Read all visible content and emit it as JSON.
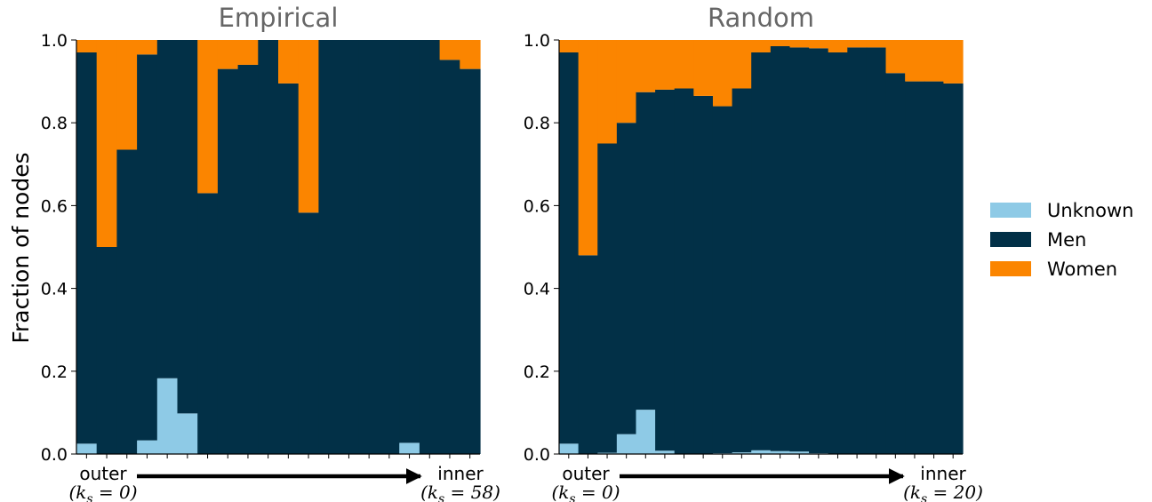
{
  "colors": {
    "unknown": "#8ecae6",
    "men": "#023047",
    "women": "#fb8500"
  },
  "ylabel": "Fraction of nodes",
  "legend": {
    "items": [
      {
        "key": "unknown",
        "label": "Unknown"
      },
      {
        "key": "men",
        "label": "Men"
      },
      {
        "key": "women",
        "label": "Women"
      }
    ]
  },
  "chart_data": [
    {
      "type": "bar",
      "stacked": true,
      "title": "Empirical",
      "ylim": [
        0,
        1
      ],
      "yticks": [
        "0.0",
        "0.2",
        "0.4",
        "0.6",
        "0.8",
        "1.0"
      ],
      "x_start_label": "outer",
      "x_start_k": "(k_s = 0)",
      "x_end_label": "inner",
      "x_end_k": "(k_s = 58)",
      "series": [
        {
          "name": "Unknown",
          "values": [
            0.025,
            0,
            0,
            0.033,
            0.183,
            0.098,
            0,
            0,
            0,
            0,
            0,
            0,
            0,
            0,
            0,
            0,
            0.027,
            0,
            0,
            0
          ]
        },
        {
          "name": "Men",
          "values": [
            0.945,
            0.5,
            0.735,
            0.932,
            0.817,
            0.902,
            0.63,
            0.93,
            0.94,
            1.0,
            0.895,
            0.583,
            1.0,
            1.0,
            1.0,
            1.0,
            0.973,
            1.0,
            0.952,
            0.93
          ]
        },
        {
          "name": "Women",
          "values": [
            0.03,
            0.5,
            0.265,
            0.035,
            0,
            0,
            0.37,
            0.07,
            0.06,
            0,
            0.105,
            0.417,
            0,
            0,
            0,
            0,
            0,
            0,
            0.048,
            0.07
          ]
        }
      ]
    },
    {
      "type": "bar",
      "stacked": true,
      "title": "Random",
      "ylim": [
        0,
        1
      ],
      "yticks": [
        "0.0",
        "0.2",
        "0.4",
        "0.6",
        "0.8",
        "1.0"
      ],
      "x_start_label": "outer",
      "x_start_k": "(k_s = 0)",
      "x_end_label": "inner",
      "x_end_k": "(k_s = 20)",
      "series": [
        {
          "name": "Unknown",
          "values": [
            0.025,
            0,
            0.003,
            0.048,
            0.107,
            0.008,
            0,
            0,
            0.002,
            0.004,
            0.009,
            0.007,
            0.006,
            0.002,
            0,
            0,
            0,
            0,
            0,
            0,
            0
          ]
        },
        {
          "name": "Men",
          "values": [
            0.945,
            0.48,
            0.747,
            0.752,
            0.767,
            0.872,
            0.883,
            0.865,
            0.838,
            0.879,
            0.961,
            0.978,
            0.976,
            0.978,
            0.97,
            0.982,
            0.982,
            0.92,
            0.9,
            0.9,
            0.895
          ]
        },
        {
          "name": "Women",
          "values": [
            0.03,
            0.52,
            0.25,
            0.2,
            0.126,
            0.12,
            0.117,
            0.135,
            0.16,
            0.117,
            0.03,
            0.015,
            0.018,
            0.02,
            0.03,
            0.018,
            0.018,
            0.08,
            0.1,
            0.1,
            0.105
          ]
        }
      ]
    }
  ]
}
